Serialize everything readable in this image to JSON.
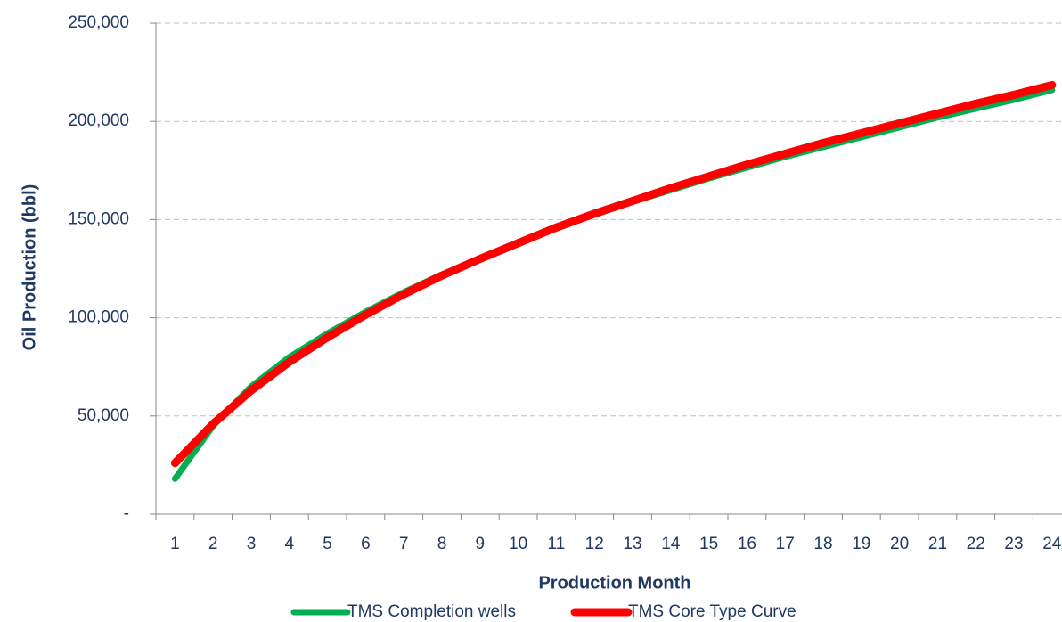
{
  "chart_data": {
    "type": "line",
    "x_label": "Production Month",
    "y_label": "Oil Production (bbl)",
    "categories": [
      "1",
      "2",
      "3",
      "4",
      "5",
      "6",
      "7",
      "8",
      "9",
      "10",
      "11",
      "12",
      "13",
      "14",
      "15",
      "16",
      "17",
      "18",
      "19",
      "20",
      "21",
      "22",
      "23",
      "24"
    ],
    "series": [
      {
        "name": "TMS Completion wells",
        "color": "#00b050",
        "values": [
          18000,
          45000,
          65000,
          80000,
          92000,
          103000,
          113000,
          122000,
          130000,
          138000,
          145500,
          152500,
          159000,
          165000,
          171000,
          176500,
          182000,
          187000,
          192000,
          197000,
          202000,
          206500,
          211000,
          216000
        ]
      },
      {
        "name": "TMS Core Type Curve",
        "color": "#ff0000",
        "values": [
          26000,
          46000,
          63000,
          77500,
          90000,
          101500,
          112000,
          121500,
          130000,
          138000,
          146000,
          153000,
          159500,
          166000,
          172000,
          178000,
          183500,
          189000,
          194000,
          199000,
          204000,
          209000,
          213500,
          218500
        ]
      }
    ],
    "ylim": [
      0,
      250000
    ],
    "yticks": [
      {
        "value": 0,
        "label": "-"
      },
      {
        "value": 50000,
        "label": "50,000"
      },
      {
        "value": 100000,
        "label": "100,000"
      },
      {
        "value": 150000,
        "label": "150,000"
      },
      {
        "value": 200000,
        "label": "200,000"
      },
      {
        "value": 250000,
        "label": "250,000"
      }
    ],
    "grid": true,
    "legend": "bottom"
  }
}
